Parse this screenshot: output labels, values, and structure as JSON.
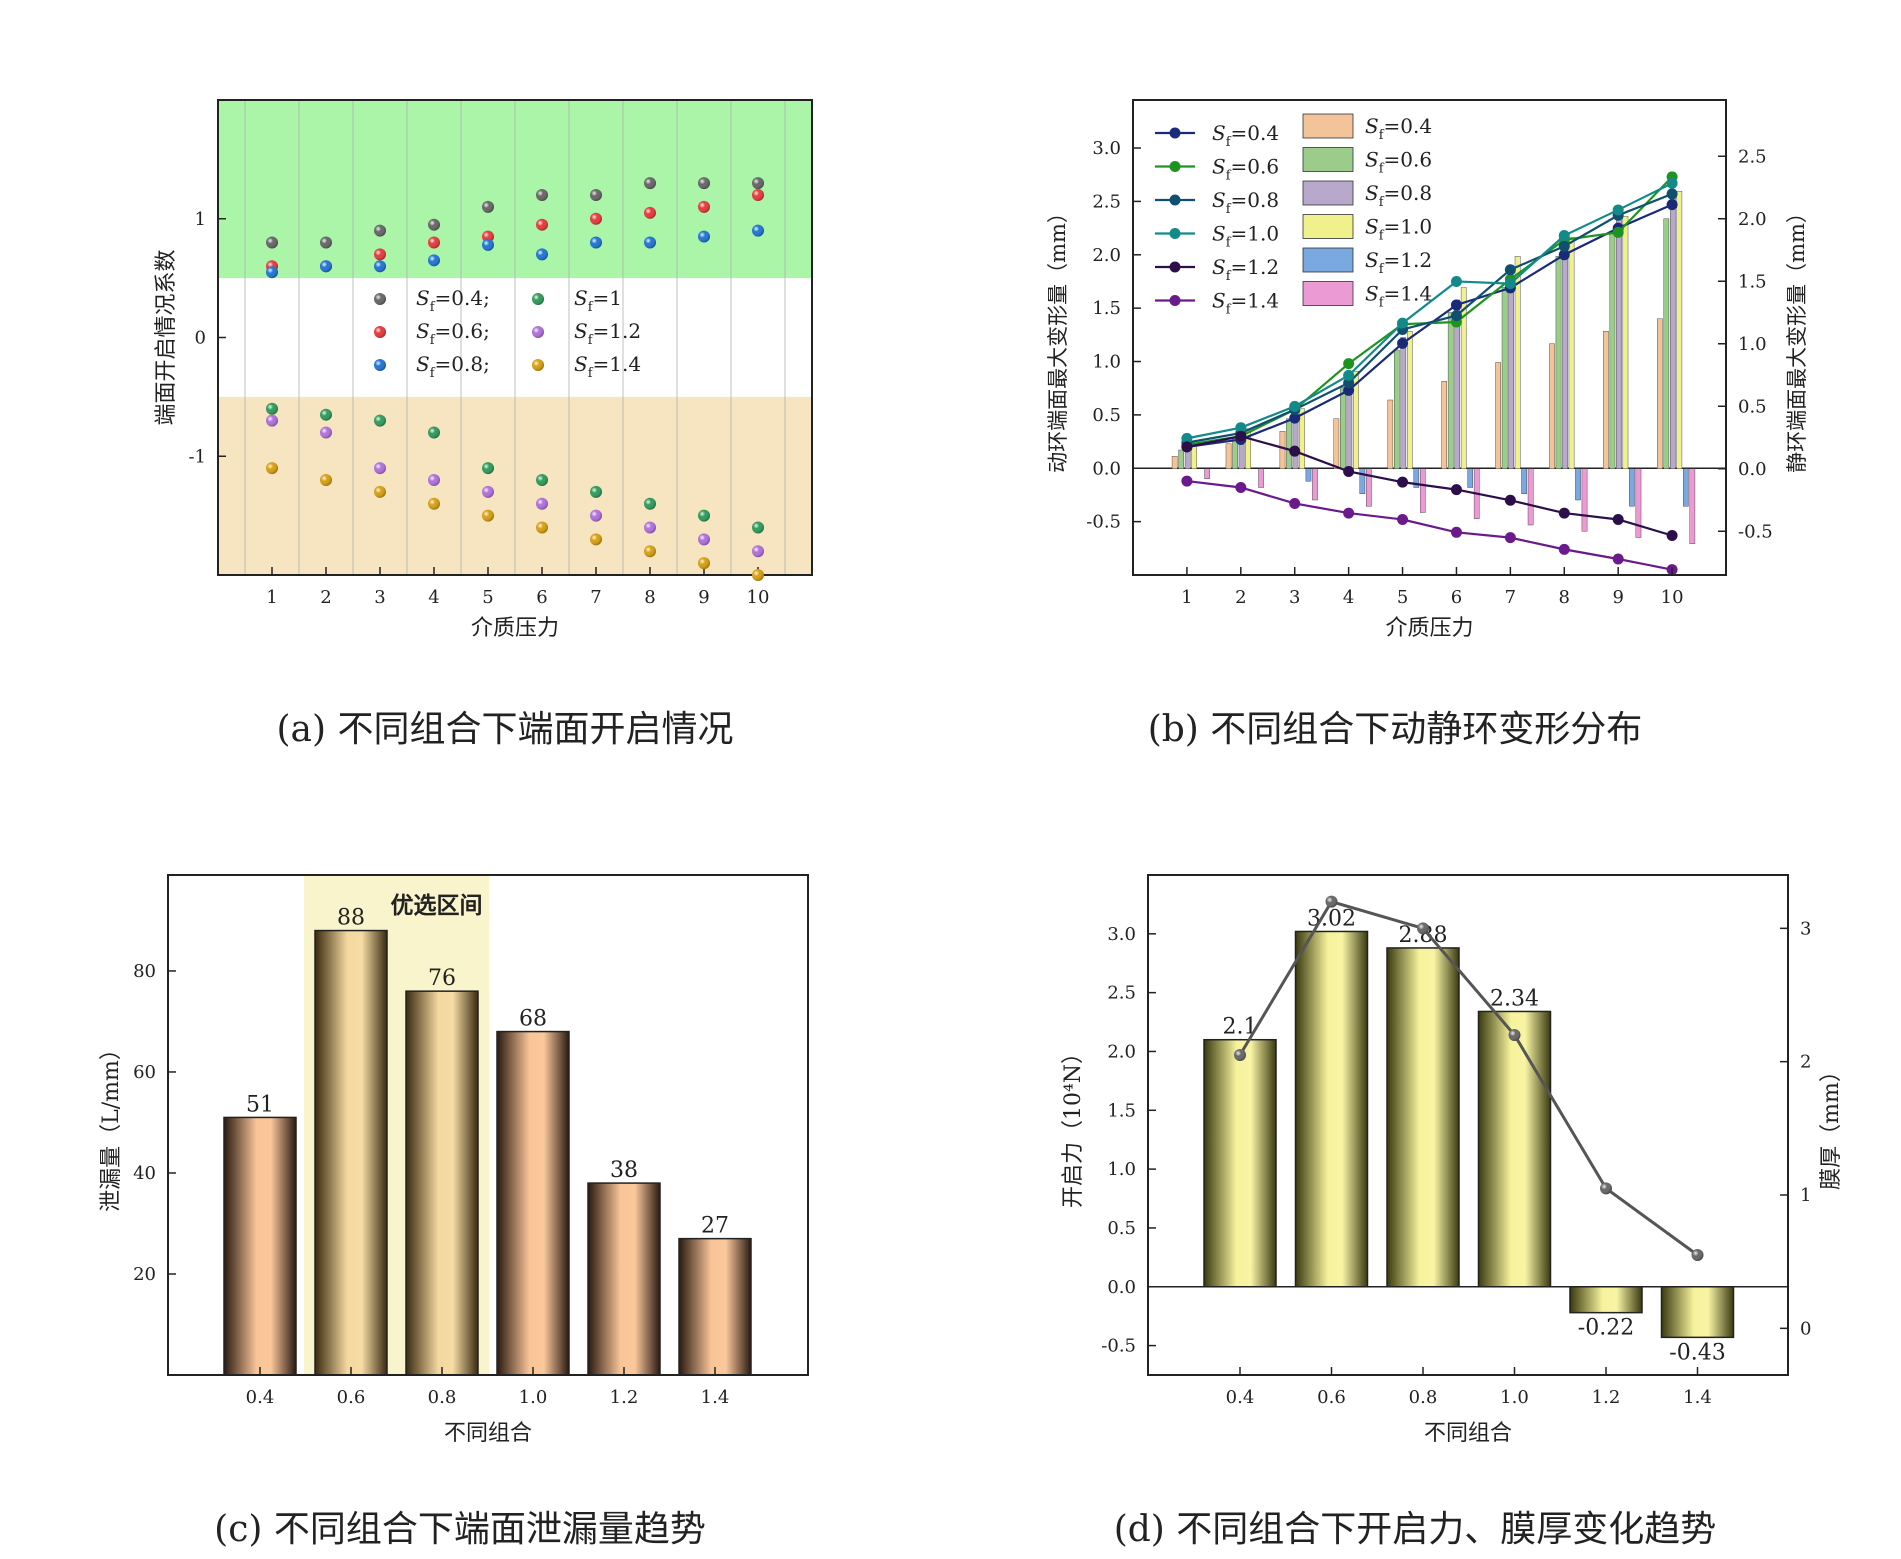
{
  "captions": {
    "a": "(a) 不同组合下端面开启情况",
    "b": "(b) 不同组合下动静环变形分布",
    "c": "(c) 不同组合下端面泄漏量趋势",
    "d": "(d) 不同组合下开启力、膜厚变化趋势"
  },
  "chart_data": [
    {
      "id": "a",
      "type": "scatter",
      "xlabel": "介质压力",
      "ylabel": "端面开启情况系数",
      "x": [
        1,
        2,
        3,
        4,
        5,
        6,
        7,
        8,
        9,
        10
      ],
      "xlim": [
        0,
        11
      ],
      "ylim": [
        -2,
        2
      ],
      "yticks": [
        -1,
        0,
        1
      ],
      "bands": [
        {
          "from": 0.5,
          "to": 2,
          "color": "#aaf5a8"
        },
        {
          "from": -2,
          "to": -0.5,
          "color": "#f7e5c1"
        }
      ],
      "series": [
        {
          "name": "Sf=0.4;",
          "color": "#666666",
          "values": [
            0.8,
            0.8,
            0.9,
            0.95,
            1.1,
            1.2,
            1.2,
            1.3,
            1.3,
            1.3
          ]
        },
        {
          "name": "Sf=0.6;",
          "color": "#e8383b",
          "values": [
            0.6,
            0.6,
            0.7,
            0.8,
            0.85,
            0.95,
            1.0,
            1.05,
            1.1,
            1.2
          ]
        },
        {
          "name": "Sf=0.8;",
          "color": "#1f74d6",
          "values": [
            0.55,
            0.6,
            0.6,
            0.65,
            0.78,
            0.7,
            0.8,
            0.8,
            0.85,
            0.9
          ]
        },
        {
          "name": "Sf=1",
          "color": "#2e9b5a",
          "values": [
            -0.6,
            -0.65,
            -0.7,
            -0.8,
            -1.1,
            -1.2,
            -1.3,
            -1.4,
            -1.5,
            -1.6
          ]
        },
        {
          "name": "Sf=1.2",
          "color": "#b070dc",
          "values": [
            -0.7,
            -0.8,
            -1.1,
            -1.2,
            -1.3,
            -1.4,
            -1.5,
            -1.6,
            -1.7,
            -1.8
          ]
        },
        {
          "name": "Sf=1.4",
          "color": "#d8a010",
          "values": [
            -1.1,
            -1.2,
            -1.3,
            -1.4,
            -1.5,
            -1.6,
            -1.7,
            -1.8,
            -1.9,
            -2.0
          ]
        }
      ]
    },
    {
      "id": "b",
      "type": "bar",
      "xlabel": "介质压力",
      "ylabel": "动环端面最大变形量（mm）",
      "y2label": "静环端面最大变形量（mm）",
      "x": [
        1,
        2,
        3,
        4,
        5,
        6,
        7,
        8,
        9,
        10
      ],
      "xlim": [
        0,
        11
      ],
      "ylim": [
        -1.0,
        3.45
      ],
      "yticks": [
        -0.5,
        0.0,
        0.5,
        1.0,
        1.5,
        2.0,
        2.5,
        3.0
      ],
      "y2lim": [
        -0.85,
        2.95
      ],
      "y2ticks": [
        -0.5,
        0.0,
        0.5,
        1.0,
        1.5,
        2.0,
        2.5
      ],
      "lines": [
        {
          "name": "Sf=0.4",
          "color": "#1a2a7a",
          "values": [
            0.2,
            0.27,
            0.47,
            0.73,
            1.17,
            1.53,
            1.69,
            2.0,
            2.25,
            2.47
          ]
        },
        {
          "name": "Sf=0.6",
          "color": "#1e9420",
          "values": [
            0.22,
            0.3,
            0.55,
            0.98,
            1.35,
            1.37,
            1.77,
            2.14,
            2.21,
            2.73
          ]
        },
        {
          "name": "Sf=0.8",
          "color": "#114f70",
          "values": [
            0.24,
            0.33,
            0.55,
            0.8,
            1.3,
            1.43,
            1.86,
            2.08,
            2.37,
            2.57
          ]
        },
        {
          "name": "Sf=1.0",
          "color": "#138a8a",
          "values": [
            0.28,
            0.38,
            0.58,
            0.87,
            1.36,
            1.75,
            1.73,
            2.18,
            2.42,
            2.67
          ]
        },
        {
          "name": "Sf=1.2",
          "color": "#2c0f4a",
          "values": [
            0.2,
            0.3,
            0.16,
            -0.03,
            -0.13,
            -0.2,
            -0.3,
            -0.42,
            -0.48,
            -0.63
          ]
        },
        {
          "name": "Sf=1.4",
          "color": "#6a1a8a",
          "values": [
            -0.12,
            -0.18,
            -0.33,
            -0.42,
            -0.48,
            -0.6,
            -0.65,
            -0.76,
            -0.85,
            -0.95
          ]
        }
      ],
      "bars": [
        {
          "name": "Sf=0.4",
          "color": "#f3c39a",
          "values": [
            0.1,
            0.2,
            0.3,
            0.4,
            0.55,
            0.7,
            0.85,
            1.0,
            1.1,
            1.2
          ]
        },
        {
          "name": "Sf=0.6",
          "color": "#9ccc8c",
          "values": [
            0.15,
            0.25,
            0.4,
            0.65,
            0.95,
            1.25,
            1.45,
            1.7,
            1.9,
            2.0
          ]
        },
        {
          "name": "Sf=0.8",
          "color": "#b8a8cc",
          "values": [
            0.18,
            0.3,
            0.45,
            0.75,
            1.05,
            1.35,
            1.55,
            1.8,
            2.0,
            2.2
          ]
        },
        {
          "name": "Sf=1.0",
          "color": "#f0f08c",
          "values": [
            0.18,
            0.32,
            0.48,
            0.78,
            1.1,
            1.45,
            1.7,
            1.85,
            2.02,
            2.22
          ]
        },
        {
          "name": "Sf=1.2",
          "color": "#7aa8e0",
          "values": [
            0.0,
            0.0,
            -0.1,
            -0.2,
            -0.15,
            -0.15,
            -0.2,
            -0.25,
            -0.3,
            -0.3
          ]
        },
        {
          "name": "Sf=1.4",
          "color": "#ec9ad4",
          "values": [
            -0.08,
            -0.15,
            -0.25,
            -0.3,
            -0.35,
            -0.4,
            -0.45,
            -0.5,
            -0.55,
            -0.6
          ]
        }
      ]
    },
    {
      "id": "c",
      "type": "bar",
      "xlabel": "不同组合",
      "ylabel": "泄漏量（L/mm）",
      "categories": [
        "0.4",
        "0.6",
        "0.8",
        "1.0",
        "1.2",
        "1.4"
      ],
      "values": [
        51,
        88,
        76,
        68,
        38,
        27
      ],
      "data_labels": [
        "51",
        "88",
        "76",
        "68",
        "38",
        "27"
      ],
      "ylim": [
        0,
        99
      ],
      "yticks": [
        20,
        40,
        60,
        80
      ],
      "highlight": {
        "label": "优选区间",
        "categories": [
          "0.6",
          "0.8"
        ]
      }
    },
    {
      "id": "d",
      "type": "bar",
      "xlabel": "不同组合",
      "ylabel": "开启力（10⁴N）",
      "y2label": "膜厚（mm）",
      "categories": [
        "0.4",
        "0.6",
        "0.8",
        "1.0",
        "1.2",
        "1.4"
      ],
      "values": [
        2.1,
        3.02,
        2.88,
        2.34,
        -0.22,
        -0.43
      ],
      "data_labels": [
        "2.1",
        "3.02",
        "2.88",
        "2.34",
        "-0.22",
        "-0.43"
      ],
      "ylim": [
        -0.75,
        3.5
      ],
      "yticks": [
        -0.5,
        0.0,
        0.5,
        1.0,
        1.5,
        2.0,
        2.5,
        3.0
      ],
      "film_thickness": [
        2.05,
        3.2,
        3.0,
        2.2,
        1.05,
        0.55
      ],
      "y2lim": [
        -0.35,
        3.4
      ],
      "y2ticks": [
        0,
        1,
        2,
        3
      ]
    }
  ]
}
